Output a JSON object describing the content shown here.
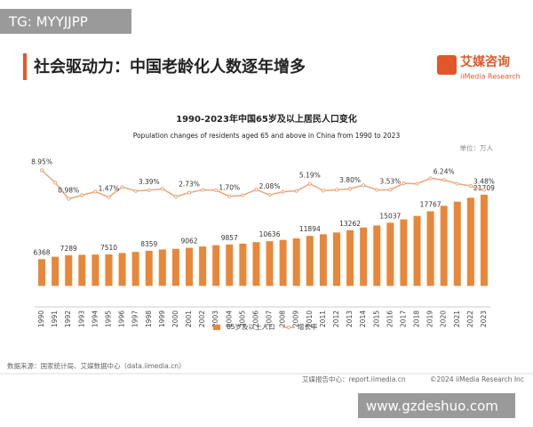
{
  "watermark_top": "TG: MYYJJPP",
  "header": {
    "title": "社会驱动力：中国老龄化人数逐年增多",
    "logo": "艾媒咨询",
    "logo_sub": "iiMedia Research"
  },
  "chart_data": {
    "type": "bar_line",
    "title": "1990-2023年中国65岁及以上居民人口变化",
    "subtitle": "Population changes of residents aged 65 and above in China from 1990 to 2023",
    "unit": "单位：万人",
    "categories": [
      "1990",
      "1991",
      "1992",
      "1993",
      "1994",
      "1995",
      "1996",
      "1997",
      "1998",
      "1999",
      "2000",
      "2001",
      "2002",
      "2003",
      "2004",
      "2005",
      "2006",
      "2007",
      "2008",
      "2009",
      "2010",
      "2011",
      "2012",
      "2013",
      "2014",
      "2015",
      "2016",
      "2017",
      "2018",
      "2019",
      "2020",
      "2021",
      "2022",
      "2023"
    ],
    "ylim": [
      -5000,
      31000
    ],
    "y2lim": [
      -29,
      13
    ],
    "series": [
      {
        "name": "65岁及以上人口",
        "color": "#e8873a",
        "values": [
          6368,
          6938,
          7289,
          7400,
          7450,
          7510,
          7833,
          8085,
          8359,
          8679,
          8821,
          9062,
          9377,
          9692,
          9857,
          10055,
          10419,
          10636,
          10956,
          11307,
          11894,
          12288,
          12714,
          13262,
          13902,
          14386,
          15037,
          15831,
          16658,
          17767,
          19064,
          20056,
          20978,
          21709
        ],
        "value_labels": [
          "6368",
          null,
          "7289",
          null,
          null,
          "7510",
          null,
          null,
          "8359",
          null,
          null,
          "9062",
          null,
          null,
          "9857",
          null,
          null,
          "10636",
          null,
          null,
          "11894",
          null,
          null,
          "13262",
          null,
          null,
          "15037",
          null,
          null,
          "17767",
          null,
          null,
          null,
          "21709"
        ]
      },
      {
        "name": "增长率",
        "color": "#eaa77a",
        "axis": "y2",
        "values": [
          8.95,
          5.5,
          0.98,
          2.0,
          3.0,
          1.47,
          4.3,
          3.2,
          3.39,
          3.8,
          1.6,
          2.73,
          3.5,
          3.4,
          1.7,
          2.0,
          3.6,
          2.08,
          3.0,
          3.2,
          5.19,
          3.3,
          3.5,
          3.8,
          4.8,
          3.5,
          3.53,
          5.3,
          5.2,
          6.7,
          6.24,
          5.2,
          4.6,
          3.48
        ],
        "value_labels": [
          "8.95%",
          null,
          "0.98%",
          null,
          null,
          "1.47%",
          null,
          null,
          "3.39%",
          null,
          null,
          "2.73%",
          null,
          null,
          "1.70%",
          null,
          null,
          "2.08%",
          null,
          null,
          "5.19%",
          null,
          null,
          "3.80%",
          null,
          null,
          "3.53%",
          null,
          null,
          null,
          "6.24%",
          null,
          null,
          "3.48%"
        ]
      }
    ]
  },
  "footer": {
    "source": "数据来源：国家统计局、艾媒数据中心（data.iimedia.cn）",
    "report": "艾媒报告中心：report.iimedia.cn",
    "copyright": "©2024  iiMedia Research Inc"
  },
  "watermark_bottom": "www.gzdeshuo.com"
}
